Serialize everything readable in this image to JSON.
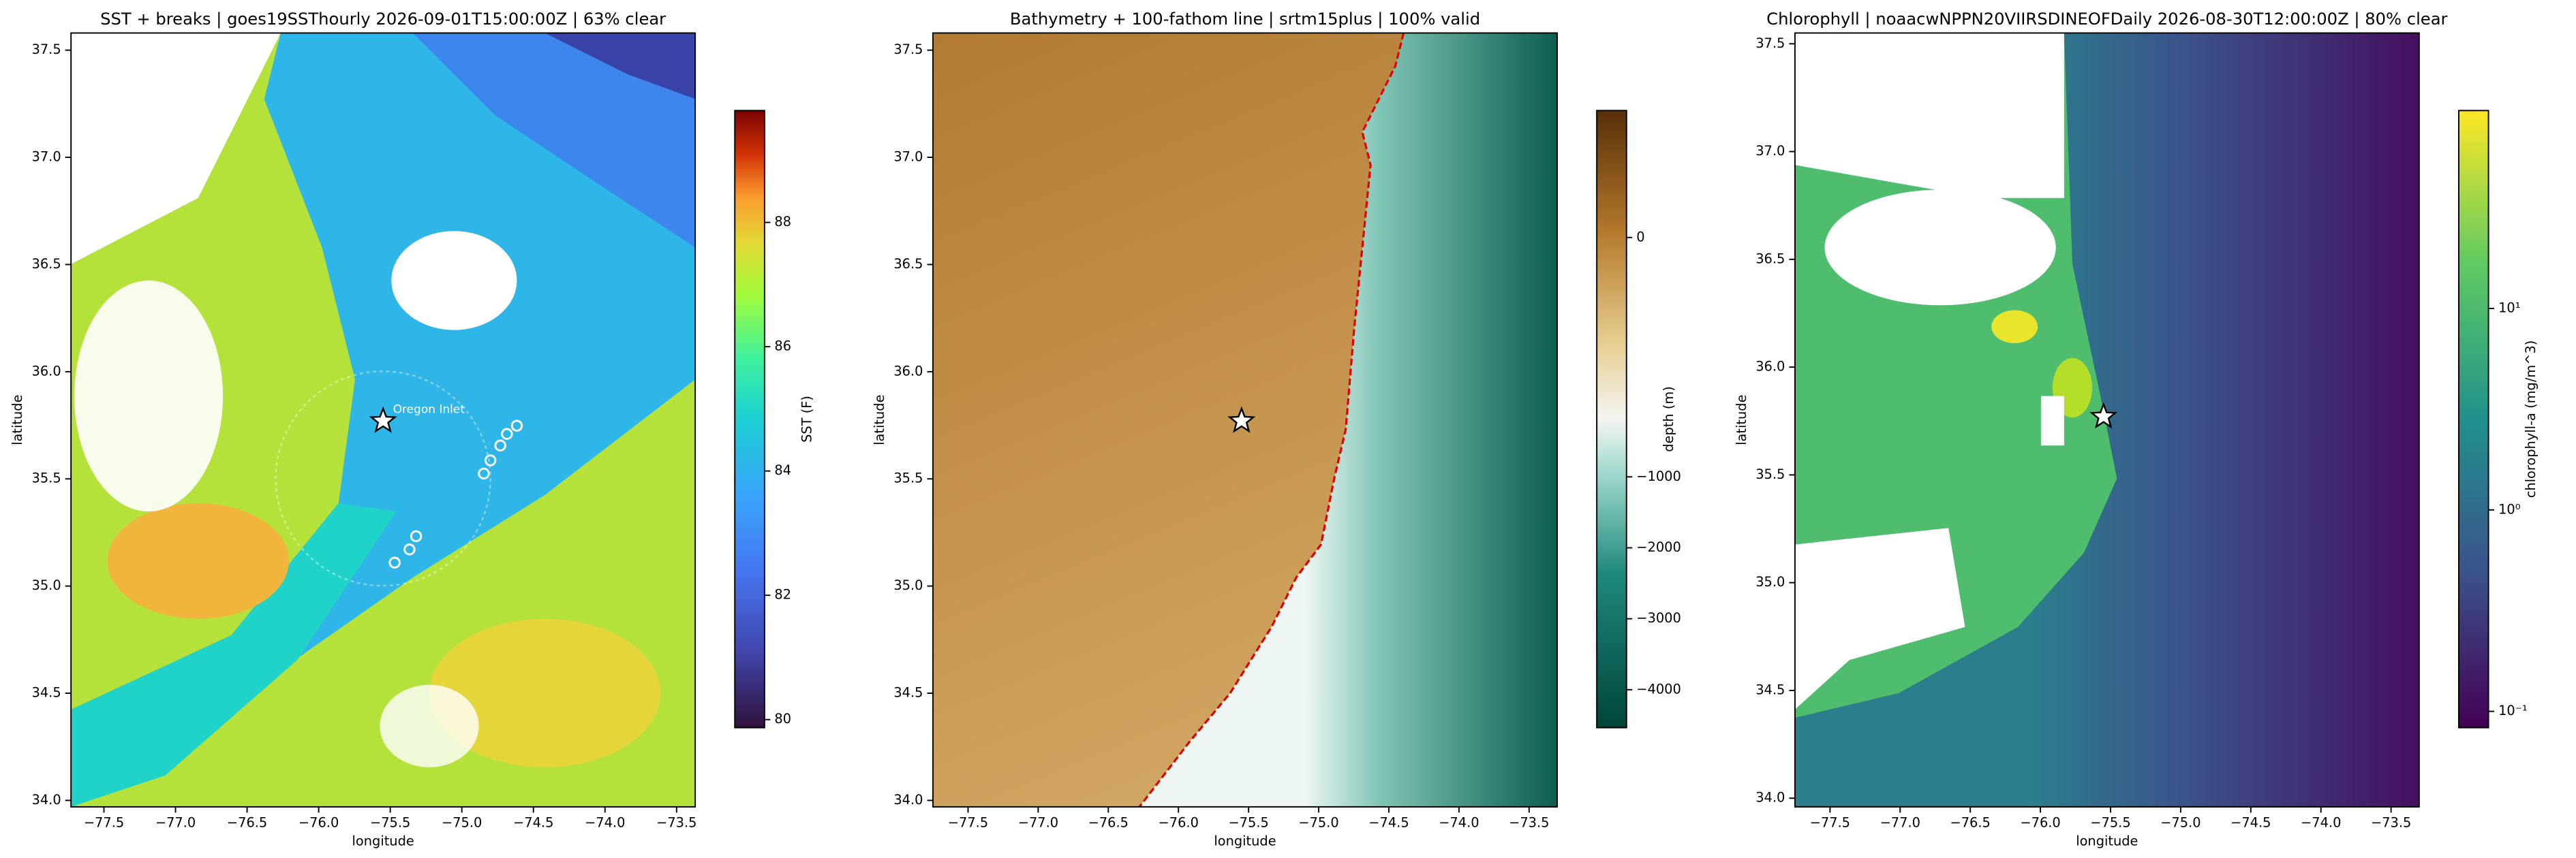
{
  "chart_data": [
    {
      "type": "map",
      "title": "SST + breaks  |  goes19SSThourly 2026-09-01T15:00:00Z  |  63% clear",
      "xlabel": "longitude",
      "ylabel": "latitude",
      "xlim": [
        -77.73,
        -73.37
      ],
      "ylim": [
        33.97,
        37.58
      ],
      "xticks": [
        {
          "value": -77.5,
          "label": "−77.5"
        },
        {
          "value": -77,
          "label": "−77.0"
        },
        {
          "value": -76.5,
          "label": "−76.5"
        },
        {
          "value": -76,
          "label": "−76.0"
        },
        {
          "value": -75.5,
          "label": "−75.5"
        },
        {
          "value": -75,
          "label": "−75.0"
        },
        {
          "value": -74.5,
          "label": "−74.5"
        },
        {
          "value": -74,
          "label": "−74.0"
        },
        {
          "value": -73.5,
          "label": "−73.5"
        }
      ],
      "yticks": [
        {
          "value": 34,
          "label": "34.0"
        },
        34.5,
        {
          "value": 35,
          "label": "35.0"
        },
        35.5,
        {
          "value": 36,
          "label": "36.0"
        },
        36.5,
        {
          "value": 37,
          "label": "37.0"
        },
        37.5
      ],
      "colorbar": {
        "label": "SST (F)",
        "lim": [
          79.87,
          89.8
        ],
        "ticks": [
          80,
          82,
          84,
          86,
          88
        ]
      },
      "marker": {
        "x": -75.55,
        "y": 35.77
      },
      "annotation": "Oregon Inlet"
    },
    {
      "type": "map",
      "title": "Bathymetry + 100-fathom line  |  srtm15plus  |  100% valid",
      "xlabel": "longitude",
      "ylabel": "latitude",
      "xlim": [
        -77.75,
        -73.3
      ],
      "ylim": [
        33.97,
        37.58
      ],
      "xticks": [
        {
          "value": -77.5,
          "label": "−77.5"
        },
        {
          "value": -77,
          "label": "−77.0"
        },
        {
          "value": -76.5,
          "label": "−76.5"
        },
        {
          "value": -76,
          "label": "−76.0"
        },
        {
          "value": -75.5,
          "label": "−75.5"
        },
        {
          "value": -75,
          "label": "−75.0"
        },
        {
          "value": -74.5,
          "label": "−74.5"
        },
        {
          "value": -74,
          "label": "−74.0"
        },
        {
          "value": -73.5,
          "label": "−73.5"
        }
      ],
      "yticks": [
        {
          "value": 34,
          "label": "34.0"
        },
        34.5,
        {
          "value": 35,
          "label": "35.0"
        },
        35.5,
        {
          "value": 36,
          "label": "36.0"
        },
        36.5,
        {
          "value": 37,
          "label": "37.0"
        },
        37.5
      ],
      "colorbar": {
        "label": "depth (m)",
        "lim": [
          -4535,
          130
        ],
        "vcenter": -186,
        "ticks": [
          {
            "value": -4000,
            "label": "−4000"
          },
          {
            "value": -3000,
            "label": "−3000"
          },
          {
            "value": -2000,
            "label": "−2000"
          },
          {
            "value": -1000,
            "label": "−1000"
          },
          0
        ]
      },
      "marker": {
        "x": -75.55,
        "y": 35.77
      }
    },
    {
      "type": "map",
      "title": "Chlorophyll  |  noaacwNPPN20VIIRSDINEOFDaily 2026-08-30T12:00:00Z  |  80% clear",
      "xlabel": "longitude",
      "ylabel": "latitude",
      "xlim": [
        -77.75,
        -73.3
      ],
      "ylim": [
        33.96,
        37.55
      ],
      "xticks": [
        {
          "value": -77.5,
          "label": "−77.5"
        },
        {
          "value": -77,
          "label": "−77.0"
        },
        {
          "value": -76.5,
          "label": "−76.5"
        },
        {
          "value": -76,
          "label": "−76.0"
        },
        {
          "value": -75.5,
          "label": "−75.5"
        },
        {
          "value": -75,
          "label": "−75.0"
        },
        {
          "value": -74.5,
          "label": "−74.5"
        },
        {
          "value": -74,
          "label": "−74.0"
        },
        {
          "value": -73.5,
          "label": "−73.5"
        }
      ],
      "yticks": [
        {
          "value": 34,
          "label": "34.0"
        },
        34.5,
        {
          "value": 35,
          "label": "35.0"
        },
        35.5,
        {
          "value": 36,
          "label": "36.0"
        },
        36.5,
        {
          "value": 37,
          "label": "37.0"
        },
        37.5
      ],
      "colorbar": {
        "label": "chlorophyll-a (mg/m^3)",
        "lim": [
          0.083,
          96
        ],
        "log": true,
        "ticks": [
          {
            "value": 0.1,
            "label": "10⁻¹"
          },
          {
            "value": 1,
            "label": "10⁰"
          },
          {
            "value": 10,
            "label": "10¹"
          }
        ]
      },
      "marker": {
        "x": -75.55,
        "y": 35.77
      }
    }
  ]
}
